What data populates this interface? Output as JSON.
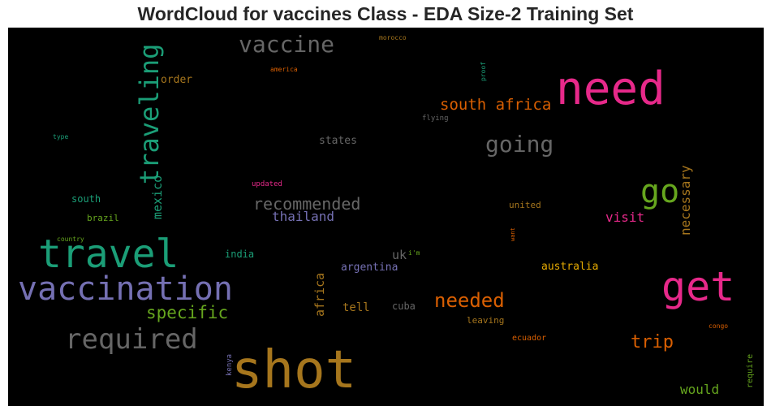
{
  "title": "WordCloud for vaccines Class - EDA Size-2 Training Set",
  "chart_data": {
    "type": "wordcloud",
    "title": "WordCloud for vaccines Class - EDA Size-2 Training Set",
    "words": [
      {
        "text": "shot",
        "color": "#a6761d"
      },
      {
        "text": "need",
        "color": "#e7298a"
      },
      {
        "text": "travel",
        "color": "#1b9e77"
      },
      {
        "text": "vaccination",
        "color": "#7570b3"
      },
      {
        "text": "get",
        "color": "#e7298a"
      },
      {
        "text": "required",
        "color": "#666666"
      },
      {
        "text": "traveling",
        "color": "#1b9e77"
      },
      {
        "text": "vaccine",
        "color": "#666666"
      },
      {
        "text": "go",
        "color": "#66a61e"
      },
      {
        "text": "going",
        "color": "#666666"
      },
      {
        "text": "needed",
        "color": "#d95f02"
      },
      {
        "text": "south africa",
        "color": "#d95f02"
      },
      {
        "text": "specific",
        "color": "#66a61e"
      },
      {
        "text": "recommended",
        "color": "#666666"
      },
      {
        "text": "trip",
        "color": "#d95f02"
      },
      {
        "text": "necessary",
        "color": "#a6761d"
      },
      {
        "text": "thailand",
        "color": "#7570b3"
      },
      {
        "text": "mexico",
        "color": "#1b9e77"
      },
      {
        "text": "visit",
        "color": "#e7298a"
      },
      {
        "text": "would",
        "color": "#66a61e"
      },
      {
        "text": "africa",
        "color": "#a6761d"
      },
      {
        "text": "tell",
        "color": "#a6761d"
      },
      {
        "text": "uk",
        "color": "#666666"
      },
      {
        "text": "australia",
        "color": "#e6ab02"
      },
      {
        "text": "argentina",
        "color": "#7570b3"
      },
      {
        "text": "order",
        "color": "#a6761d"
      },
      {
        "text": "states",
        "color": "#666666"
      },
      {
        "text": "south",
        "color": "#1b9e77"
      },
      {
        "text": "cuba",
        "color": "#666666"
      },
      {
        "text": "india",
        "color": "#1b9e77"
      },
      {
        "text": "brazil",
        "color": "#66a61e"
      },
      {
        "text": "united",
        "color": "#a6761d"
      },
      {
        "text": "leaving",
        "color": "#a6761d"
      },
      {
        "text": "ecuador",
        "color": "#d95f02"
      },
      {
        "text": "require",
        "color": "#66a61e"
      },
      {
        "text": "kenya",
        "color": "#7570b3"
      },
      {
        "text": "updated",
        "color": "#e7298a"
      },
      {
        "text": "flying",
        "color": "#666666"
      },
      {
        "text": "america",
        "color": "#d95f02"
      },
      {
        "text": "morocco",
        "color": "#a6761d"
      },
      {
        "text": "proof",
        "color": "#1b9e77"
      },
      {
        "text": "type",
        "color": "#1b9e77"
      },
      {
        "text": "country",
        "color": "#66a61e"
      },
      {
        "text": "i'm",
        "color": "#66a61e"
      },
      {
        "text": "want",
        "color": "#d95f02"
      },
      {
        "text": "congo",
        "color": "#d95f02"
      }
    ]
  }
}
